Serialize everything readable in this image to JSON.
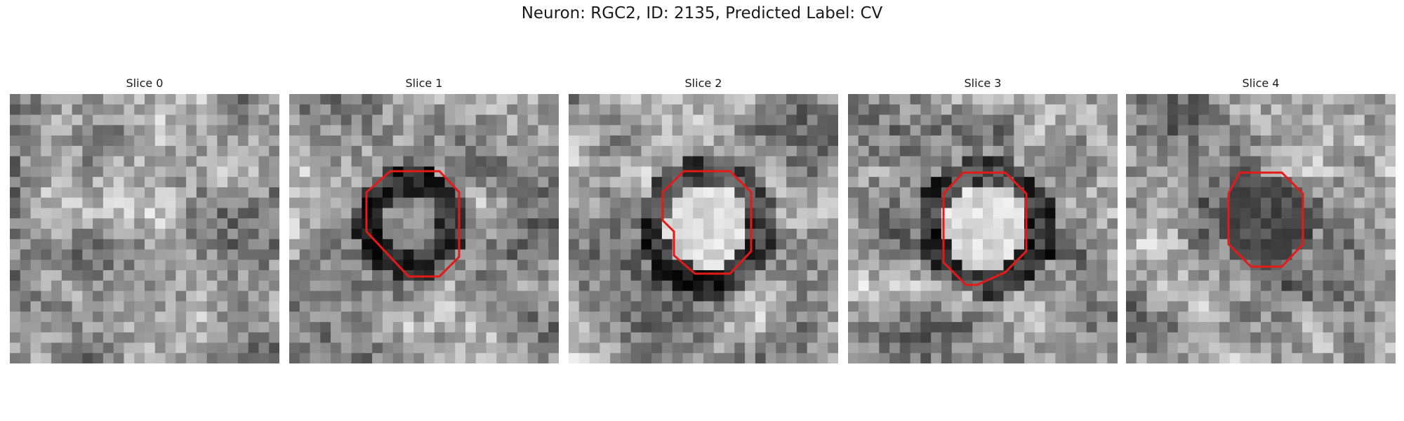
{
  "figure": {
    "title": "Neuron: RGC2, ID: 2135, Predicted Label: CV",
    "contour_color": "#e61919"
  },
  "panels": [
    {
      "title": "Slice 0",
      "texture": "noisy",
      "has_contour": false
    },
    {
      "title": "Slice 1",
      "texture": "dark-ring",
      "has_contour": true
    },
    {
      "title": "Slice 2",
      "texture": "bright-core",
      "has_contour": true
    },
    {
      "title": "Slice 3",
      "texture": "bright-core",
      "has_contour": true
    },
    {
      "title": "Slice 4",
      "texture": "dark-core",
      "has_contour": true
    }
  ]
}
